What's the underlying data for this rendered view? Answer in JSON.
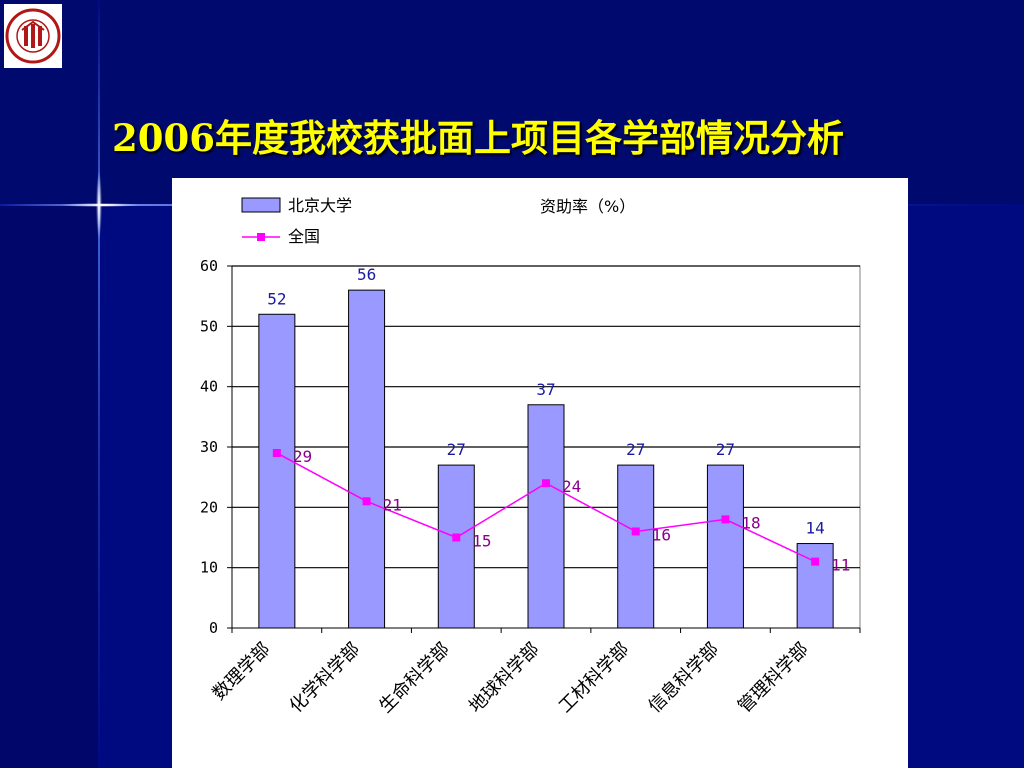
{
  "slide": {
    "title": "2006年度我校获批面上项目各学部情况分析",
    "logo_icon": "peking-university-seal-icon",
    "colors": {
      "background": "#000a80",
      "title": "#ffff00",
      "bar_fill": "#9999ff",
      "line": "#ff00ff"
    }
  },
  "chart_data": {
    "type": "bar",
    "title": "资助率（%）",
    "categories": [
      "数理学部",
      "化学科学部",
      "生命科学部",
      "地球科学部",
      "工材科学部",
      "信息科学部",
      "管理科学部"
    ],
    "series": [
      {
        "name": "北京大学",
        "type": "bar",
        "values": [
          52,
          56,
          27,
          37,
          27,
          27,
          14
        ]
      },
      {
        "name": "全国",
        "type": "line",
        "values": [
          29,
          21,
          15,
          24,
          16,
          18,
          11
        ]
      }
    ],
    "ylim": [
      0,
      60
    ],
    "yticks": [
      "0",
      "10",
      "20",
      "30",
      "40",
      "50",
      "60"
    ],
    "grid": true,
    "legend": "top-left"
  }
}
